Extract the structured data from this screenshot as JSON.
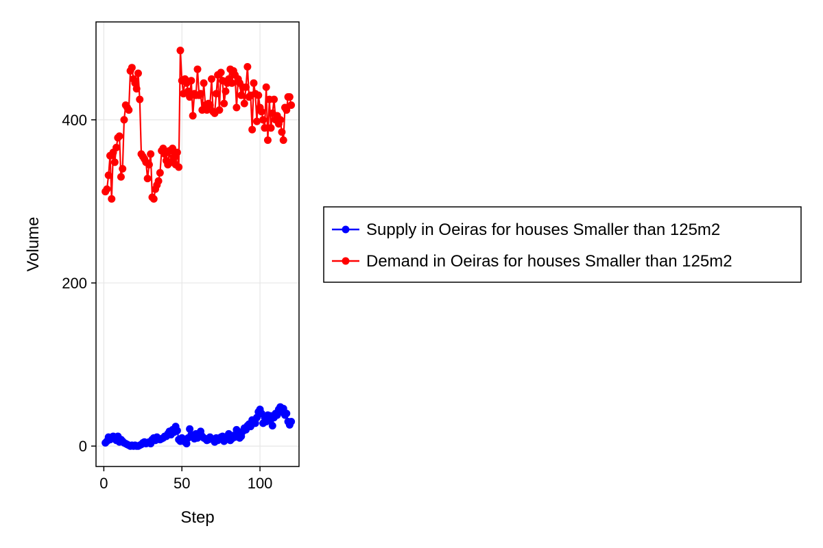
{
  "chart_data": {
    "type": "line",
    "xlabel": "Step",
    "ylabel": "Volume",
    "xlim": [
      -5,
      125
    ],
    "ylim": [
      -25,
      520
    ],
    "xticks": [
      0,
      50,
      100
    ],
    "yticks": [
      0,
      200,
      400
    ],
    "grid": true,
    "legend": "right",
    "series": [
      {
        "name": "Supply in Oeiras for houses Smaller than 125m2",
        "color": "#0000ff",
        "x": [
          1,
          2,
          3,
          4,
          5,
          6,
          7,
          8,
          9,
          10,
          11,
          12,
          13,
          14,
          15,
          16,
          17,
          18,
          19,
          20,
          21,
          22,
          23,
          24,
          25,
          26,
          27,
          28,
          29,
          30,
          31,
          32,
          33,
          34,
          35,
          36,
          37,
          38,
          39,
          40,
          41,
          42,
          43,
          44,
          45,
          46,
          47,
          48,
          49,
          50,
          51,
          52,
          53,
          54,
          55,
          56,
          57,
          58,
          59,
          60,
          61,
          62,
          63,
          64,
          65,
          66,
          67,
          68,
          69,
          70,
          71,
          72,
          73,
          74,
          75,
          76,
          77,
          78,
          79,
          80,
          81,
          82,
          83,
          84,
          85,
          86,
          87,
          88,
          89,
          90,
          91,
          92,
          93,
          94,
          95,
          96,
          97,
          98,
          99,
          100,
          101,
          102,
          103,
          104,
          105,
          106,
          107,
          108,
          109,
          110,
          111,
          112,
          113,
          114,
          115,
          116,
          117,
          118,
          119,
          120
        ],
        "y": [
          4,
          6,
          11,
          8,
          9,
          12,
          10,
          7,
          12,
          5,
          8,
          6,
          4,
          3,
          2,
          1,
          0,
          1,
          0,
          1,
          0,
          0,
          1,
          2,
          4,
          5,
          3,
          4,
          5,
          3,
          8,
          10,
          7,
          11,
          9,
          8,
          9,
          10,
          12,
          12,
          15,
          18,
          14,
          20,
          17,
          24,
          19,
          8,
          6,
          10,
          7,
          5,
          3,
          10,
          21,
          14,
          12,
          9,
          15,
          10,
          13,
          18,
          12,
          10,
          9,
          7,
          8,
          11,
          9,
          8,
          5,
          10,
          7,
          9,
          11,
          12,
          6,
          8,
          10,
          15,
          7,
          9,
          13,
          11,
          20,
          16,
          10,
          12,
          18,
          22,
          20,
          25,
          27,
          24,
          32,
          29,
          28,
          35,
          42,
          45,
          40,
          28,
          35,
          30,
          38,
          32,
          37,
          25,
          35,
          40,
          38,
          45,
          48,
          42,
          46,
          38,
          40,
          30,
          26,
          30
        ],
        "marker": "circle"
      },
      {
        "name": "Demand in Oeiras for houses Smaller than 125m2",
        "color": "#ff0000",
        "x": [
          1,
          2,
          3,
          4,
          5,
          6,
          7,
          8,
          9,
          10,
          11,
          12,
          13,
          14,
          15,
          16,
          17,
          18,
          19,
          20,
          21,
          22,
          23,
          24,
          25,
          26,
          27,
          28,
          29,
          30,
          31,
          32,
          33,
          34,
          35,
          36,
          37,
          38,
          39,
          40,
          41,
          42,
          43,
          44,
          45,
          46,
          47,
          48,
          49,
          50,
          51,
          52,
          53,
          54,
          55,
          56,
          57,
          58,
          59,
          60,
          61,
          62,
          63,
          64,
          65,
          66,
          67,
          68,
          69,
          70,
          71,
          72,
          73,
          74,
          75,
          76,
          77,
          78,
          79,
          80,
          81,
          82,
          83,
          84,
          85,
          86,
          87,
          88,
          89,
          90,
          91,
          92,
          93,
          94,
          95,
          96,
          97,
          98,
          99,
          100,
          101,
          102,
          103,
          104,
          105,
          106,
          107,
          108,
          109,
          110,
          111,
          112,
          113,
          114,
          115,
          116,
          117,
          118,
          119,
          120
        ],
        "y": [
          312,
          315,
          332,
          356,
          303,
          360,
          348,
          366,
          378,
          380,
          330,
          340,
          400,
          418,
          415,
          412,
          460,
          464,
          450,
          445,
          438,
          457,
          425,
          358,
          355,
          352,
          348,
          328,
          345,
          358,
          305,
          303,
          315,
          320,
          325,
          335,
          362,
          365,
          358,
          350,
          345,
          362,
          348,
          365,
          355,
          345,
          360,
          342,
          485,
          448,
          432,
          450,
          445,
          435,
          428,
          448,
          405,
          432,
          430,
          462,
          430,
          432,
          412,
          445,
          418,
          412,
          420,
          418,
          450,
          410,
          408,
          432,
          455,
          412,
          458,
          448,
          420,
          435,
          445,
          450,
          462,
          445,
          460,
          455,
          415,
          450,
          445,
          430,
          440,
          420,
          440,
          465,
          428,
          430,
          388,
          445,
          432,
          398,
          430,
          415,
          410,
          400,
          390,
          440,
          375,
          425,
          390,
          408,
          425,
          400,
          405,
          395,
          400,
          385,
          375,
          415,
          412,
          428,
          428,
          418
        ],
        "marker": "circle"
      }
    ]
  }
}
